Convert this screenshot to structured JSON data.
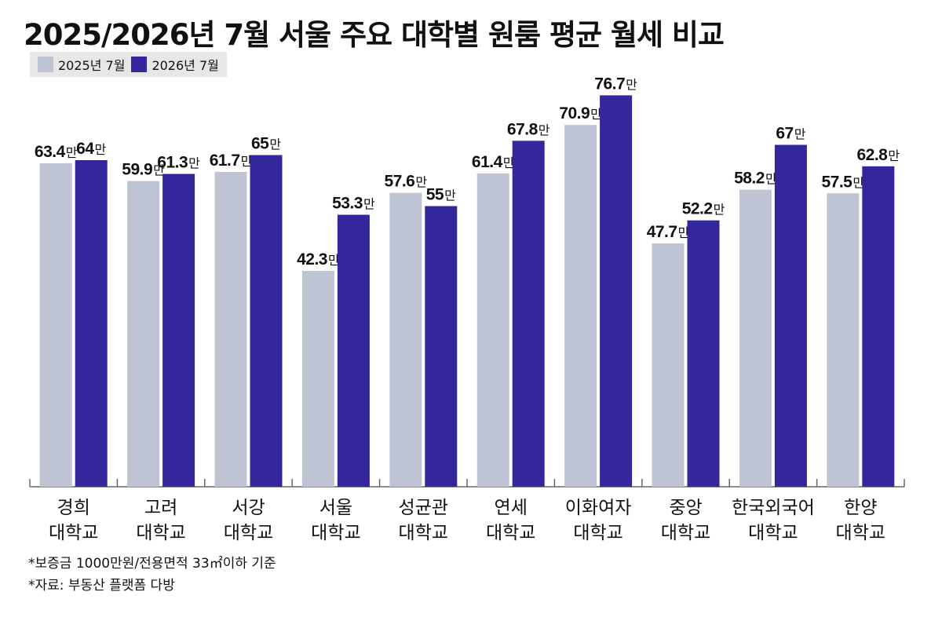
{
  "colors": {
    "y2025": "#bfc4d4",
    "y2026": "#33279b"
  },
  "chart_data": {
    "type": "bar",
    "title": "2025/2026년 7월 서울 주요 대학별 원룸 평균 월세 비교",
    "categories": [
      [
        "경희",
        "대학교"
      ],
      [
        "고려",
        "대학교"
      ],
      [
        "서강",
        "대학교"
      ],
      [
        "서울",
        "대학교"
      ],
      [
        "성균관",
        "대학교"
      ],
      [
        "연세",
        "대학교"
      ],
      [
        "이화여자",
        "대학교"
      ],
      [
        "중앙",
        "대학교"
      ],
      [
        "한국외국어",
        "대학교"
      ],
      [
        "한양",
        "대학교"
      ]
    ],
    "series": [
      {
        "name": "2025년 7월",
        "values": [
          63.4,
          59.9,
          61.7,
          42.3,
          57.6,
          61.4,
          70.9,
          47.7,
          58.2,
          57.5
        ],
        "labels": [
          "63.4",
          "59.9",
          "61.7",
          "42.3",
          "57.6",
          "61.4",
          "70.9",
          "47.7",
          "58.2",
          "57.5"
        ]
      },
      {
        "name": "2026년 7월",
        "values": [
          64,
          61.3,
          65,
          53.3,
          55,
          67.8,
          76.7,
          52.2,
          67,
          62.8
        ],
        "labels": [
          "64",
          "61.3",
          "65",
          "53.3",
          "55",
          "67.8",
          "76.7",
          "52.2",
          "67",
          "62.8"
        ]
      }
    ],
    "unit": "만",
    "ylim": [
      0,
      80
    ],
    "legend": "top-left",
    "grid": false
  },
  "footnotes": [
    "*보증금 1000만원/전용면적 33㎡이하 기준",
    "*자료: 부동산 플랫폼 다방"
  ]
}
